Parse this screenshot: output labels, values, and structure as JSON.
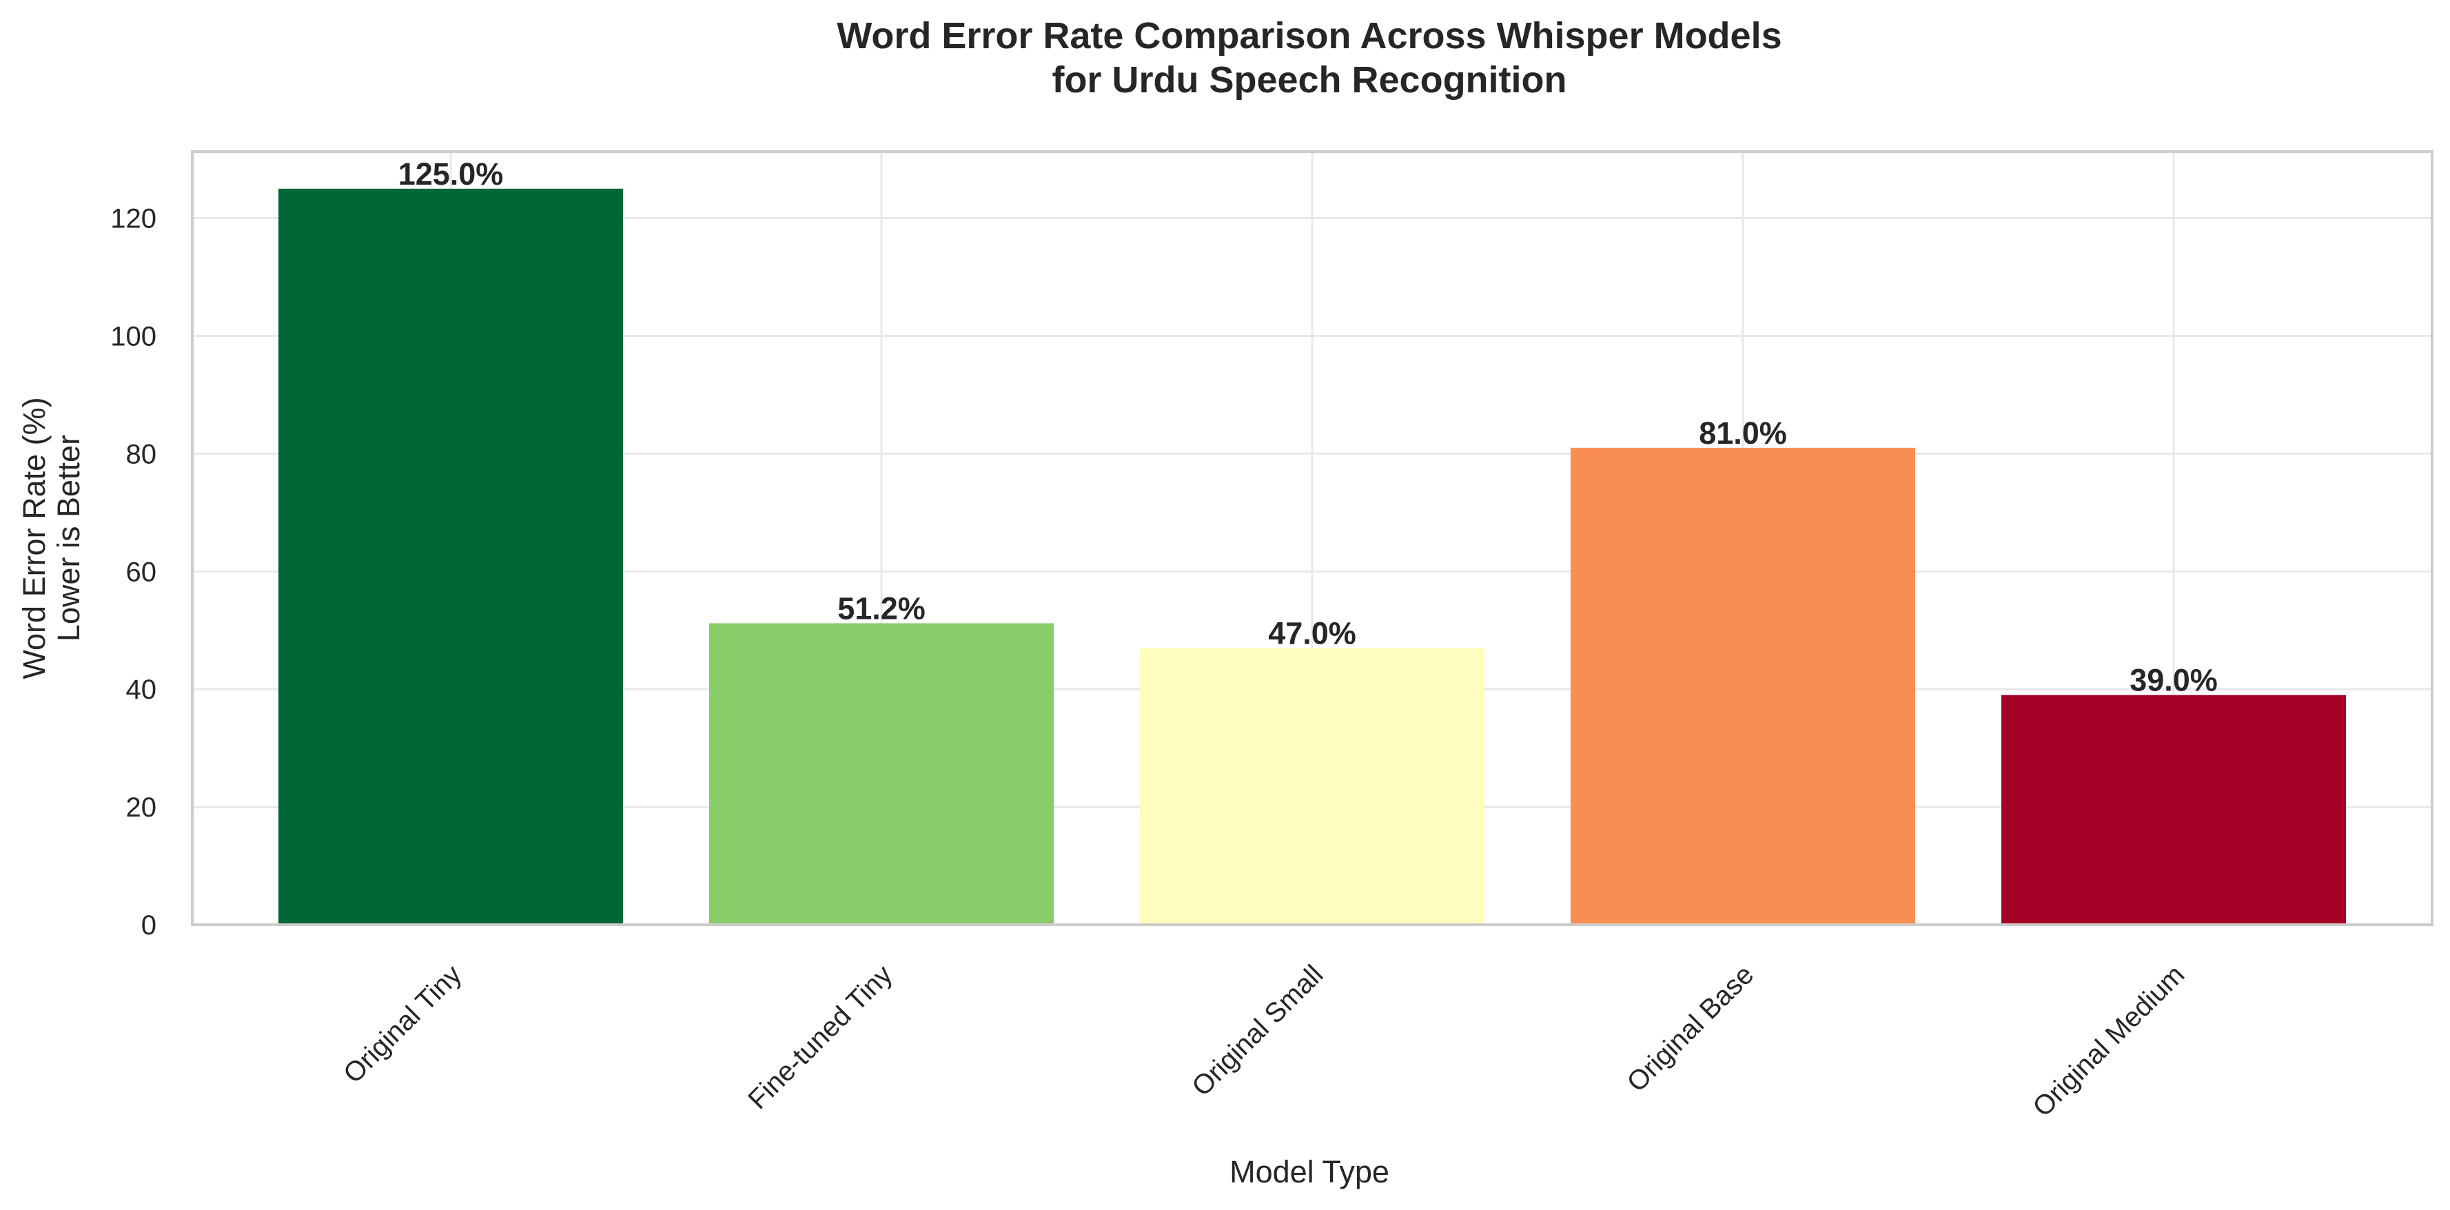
{
  "chart_data": {
    "type": "bar",
    "title": "Word Error Rate Comparison Across Whisper Models",
    "subtitle": "for Urdu Speech Recognition",
    "xlabel": "Model Type",
    "ylabel": [
      "Word Error Rate (%)",
      "Lower is Better"
    ],
    "categories": [
      "Original Tiny",
      "Fine-tuned Tiny",
      "Original Small",
      "Original Base",
      "Original Medium"
    ],
    "values": [
      125.0,
      51.2,
      47.0,
      81.0,
      39.0
    ],
    "value_labels": [
      "125.0%",
      "51.2%",
      "47.0%",
      "81.0%",
      "39.0%"
    ],
    "colors": [
      "#006837",
      "#8acc6a",
      "#fefdbd",
      "#f88e52",
      "#a50026"
    ],
    "ylim": [
      0,
      131.3
    ],
    "yticks": [
      0,
      20,
      40,
      60,
      80,
      100,
      120
    ],
    "grid": true,
    "legend": "none"
  }
}
